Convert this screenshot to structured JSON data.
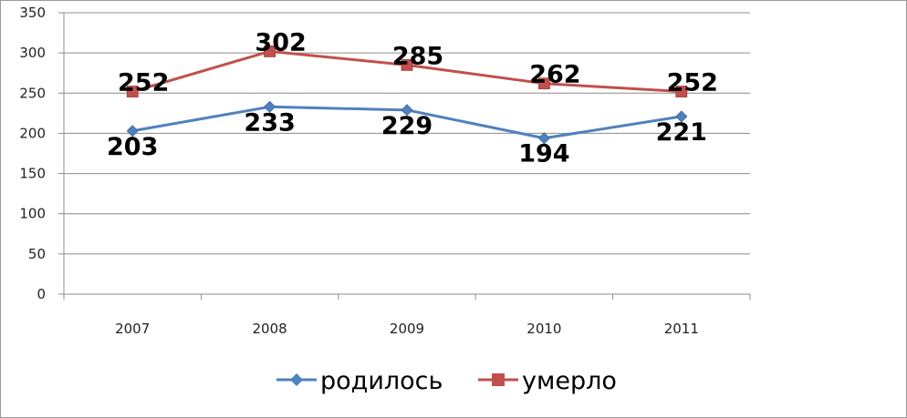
{
  "chart_data": {
    "type": "line",
    "categories": [
      "2007",
      "2008",
      "2009",
      "2010",
      "2011"
    ],
    "series": [
      {
        "name": "родилось",
        "values": [
          203,
          233,
          229,
          194,
          221
        ],
        "color": "#4f81bd",
        "marker": "diamond"
      },
      {
        "name": "умерло",
        "values": [
          252,
          302,
          285,
          262,
          252
        ],
        "color": "#c0504d",
        "marker": "square"
      }
    ],
    "ylim": [
      0,
      350
    ],
    "yticks": [
      "0",
      "50",
      "100",
      "150",
      "200",
      "250",
      "300",
      "350"
    ],
    "grid": true,
    "legend": "bottom",
    "title": "",
    "xlabel": "",
    "ylabel": ""
  }
}
